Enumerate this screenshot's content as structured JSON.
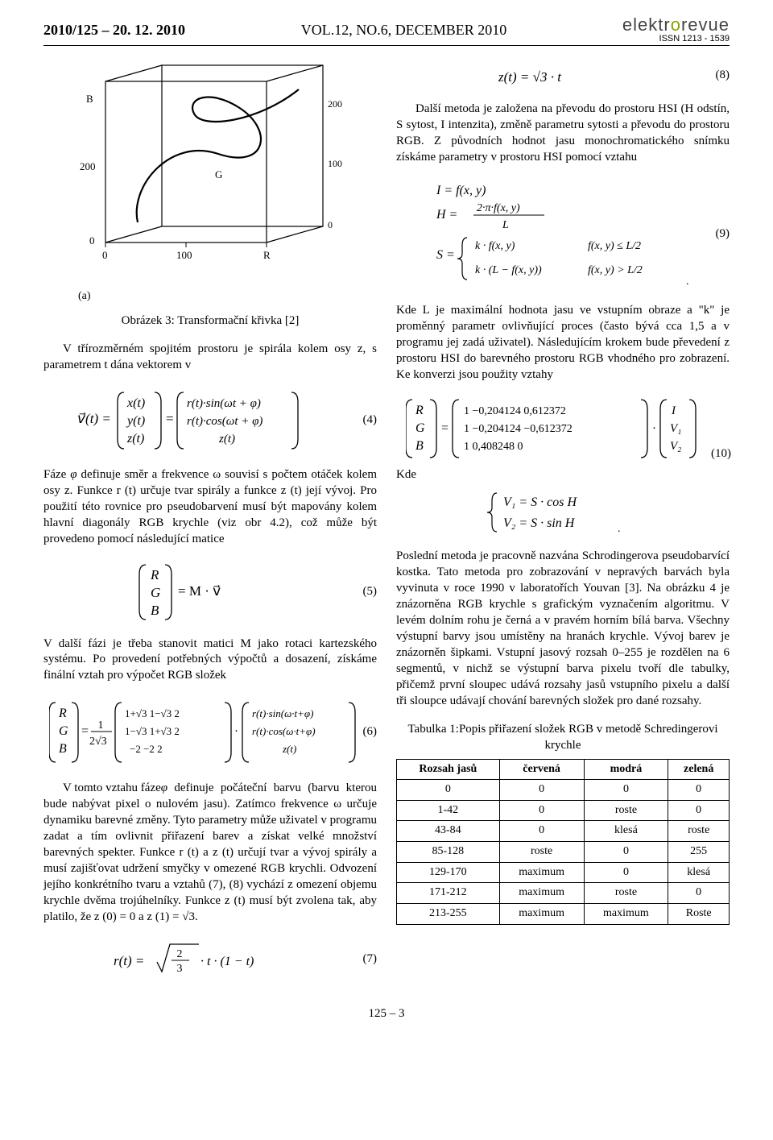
{
  "header": {
    "left": "2010/125 – 20. 12. 2010",
    "center": "VOL.12, NO.6, DECEMBER 2010",
    "logo_plain": "elektr",
    "logo_accent": "o",
    "logo_rest": "revue",
    "issn": "ISSN 1213 - 1539"
  },
  "figure3": {
    "caption": "Obrázek 3: Transformační křivka [2]",
    "axis_B_label": "B",
    "axis_G_label": "G",
    "axis_R_label": "R",
    "axis_a_label": "(a)",
    "ticks_y": [
      "200",
      "0"
    ],
    "ticks_back": [
      "200",
      "100",
      "0"
    ],
    "ticks_x": [
      "0",
      "100",
      "R"
    ],
    "colors": {
      "line": "#000000",
      "bg": "#ffffff"
    }
  },
  "left_text": {
    "p1": "V třírozměrném spojitém prostoru je spirála kolem osy z, s parametrem t dána vektorem v",
    "p2a": "Fáze ",
    "p2b": " definuje směr a frekvence ω souvisí s počtem otáček kolem osy z. Funkce r (t) určuje tvar spirály a funkce z (t) její vývoj. Pro použití této rovnice pro pseudobarvení musí být mapovány kolem hlavní diagonály RGB krychle (viz obr 4.2), což může být provedeno pomocí následující matice",
    "p3": "V další fázi je třeba stanovit matici M jako rotaci kartezského systému. Po provedení potřebných výpočtů a dosazení, získáme finální vztah pro výpočet RGB složek",
    "p4a": "V tomto vztahu fáze ",
    "p4b": " definuje počáteční barvu (barvu kterou bude nabývat pixel o nulovém jasu). Zatímco frekvence ω určuje dynamiku barevné změny. Tyto parametry může uživatel v programu zadat a tím ovlivnit přiřazení barev a získat velké množství barevných spekter. Funkce r (t) a z (t) určují tvar a vývoj spirály a musí zajišťovat udržení smyčky v omezené RGB krychli. Odvození jejího konkrétního tvaru a vztahů (7), (8) vychází z omezení objemu krychle dvěma trojúhelníky. Funkce z (t) musí být zvolena tak, aby platilo, že z (0) = 0 a z (1) = √3."
  },
  "eq": {
    "n4": "(4)",
    "n5": "(5)",
    "n6": "(6)",
    "n7": "(7)",
    "n8": "(8)",
    "n9": "(9)",
    "n10": "(10)"
  },
  "right_text": {
    "p0": "Další metoda je založena na převodu do prostoru HSI (H odstín, S sytost, I intenzita), změně parametru sytosti a převodu do prostoru RGB. Z původních hodnot jasu monochromatického snímku získáme parametry v prostoru HSI pomocí vztahu",
    "p1": "Kde L je maximální hodnota jasu ve vstupním obraze a \"k\" je proměnný parametr ovlivňující proces (často bývá cca 1,5 a v programu jej zadá uživatel). Následujícím krokem bude převedení z prostoru HSI do barevného prostoru RGB vhodného pro zobrazení. Ke konverzi jsou použity vztahy",
    "kde": "Kde",
    "p2": "Poslední metoda je pracovně nazvána Schrodingerova pseudobarvící kostka. Tato metoda pro zobrazování v nepravých barvách byla vyvinuta v roce 1990 v laboratořích Youvan [3]. Na obrázku 4 je znázorněna RGB krychle s grafickým vyznačením algoritmu. V levém dolním rohu je černá a v pravém horním bílá barva. Všechny výstupní barvy jsou umístěny na hranách krychle. Vývoj barev je znázorněn šipkami. Vstupní jasový rozsah 0–255 je rozdělen na 6 segmentů, v nichž se výstupní barva pixelu tvoří dle tabulky, přičemž první sloupec udává rozsahy jasů vstupního pixelu a další tři sloupce udávají chování barevných složek pro dané rozsahy."
  },
  "table1": {
    "caption": "Tabulka 1:Popis přiřazení složek RGB v metodě Schredingerovi krychle",
    "columns": [
      "Rozsah jasů",
      "červená",
      "modrá",
      "zelená"
    ],
    "rows": [
      [
        "0",
        "0",
        "0",
        "0"
      ],
      [
        "1-42",
        "0",
        "roste",
        "0"
      ],
      [
        "43-84",
        "0",
        "klesá",
        "roste"
      ],
      [
        "85-128",
        "roste",
        "0",
        "255"
      ],
      [
        "129-170",
        "maximum",
        "0",
        "klesá"
      ],
      [
        "171-212",
        "maximum",
        "roste",
        "0"
      ],
      [
        "213-255",
        "maximum",
        "maximum",
        "Roste"
      ]
    ],
    "col_widths": [
      "20%",
      "26%",
      "26%",
      "26%"
    ]
  },
  "footer": {
    "pagenum": "125 – 3"
  }
}
